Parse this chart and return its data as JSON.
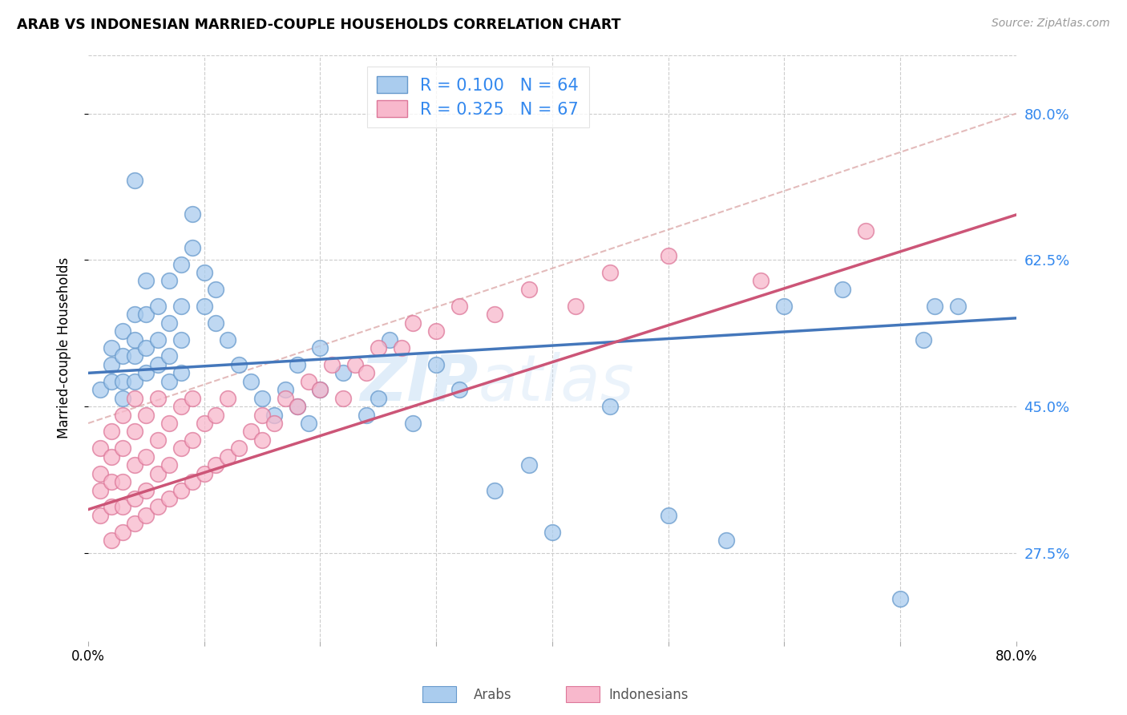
{
  "title": "ARAB VS INDONESIAN MARRIED-COUPLE HOUSEHOLDS CORRELATION CHART",
  "source": "Source: ZipAtlas.com",
  "ylabel": "Married-couple Households",
  "ytick_vals": [
    0.8,
    0.625,
    0.45,
    0.275
  ],
  "ytick_labels": [
    "80.0%",
    "62.5%",
    "45.0%",
    "27.5%"
  ],
  "xlim": [
    0.0,
    0.8
  ],
  "ylim": [
    0.17,
    0.87
  ],
  "arab_color": "#aaccee",
  "arab_edge_color": "#6699cc",
  "indonesian_color": "#f8b8cc",
  "indonesian_edge_color": "#dd7799",
  "arab_R": 0.1,
  "arab_N": 64,
  "indonesian_R": 0.325,
  "indonesian_N": 67,
  "trend_arab_color": "#4477bb",
  "trend_indonesian_color": "#cc5577",
  "diagonal_color": "#ddaaaa",
  "diagonal_style": "--",
  "watermark": "ZIPatlas",
  "legend_label_arab": "Arabs",
  "legend_label_indonesian": "Indonesians",
  "arab_x": [
    0.01,
    0.02,
    0.02,
    0.02,
    0.03,
    0.03,
    0.03,
    0.03,
    0.04,
    0.04,
    0.04,
    0.04,
    0.04,
    0.05,
    0.05,
    0.05,
    0.05,
    0.06,
    0.06,
    0.06,
    0.07,
    0.07,
    0.07,
    0.07,
    0.08,
    0.08,
    0.08,
    0.08,
    0.09,
    0.09,
    0.1,
    0.1,
    0.11,
    0.11,
    0.12,
    0.13,
    0.14,
    0.15,
    0.16,
    0.17,
    0.18,
    0.18,
    0.19,
    0.2,
    0.2,
    0.22,
    0.24,
    0.25,
    0.26,
    0.28,
    0.3,
    0.32,
    0.35,
    0.38,
    0.4,
    0.45,
    0.5,
    0.55,
    0.6,
    0.65,
    0.7,
    0.72,
    0.73,
    0.75
  ],
  "arab_y": [
    0.47,
    0.48,
    0.5,
    0.52,
    0.46,
    0.48,
    0.51,
    0.54,
    0.48,
    0.51,
    0.53,
    0.56,
    0.72,
    0.49,
    0.52,
    0.56,
    0.6,
    0.5,
    0.53,
    0.57,
    0.48,
    0.51,
    0.55,
    0.6,
    0.49,
    0.53,
    0.57,
    0.62,
    0.64,
    0.68,
    0.57,
    0.61,
    0.55,
    0.59,
    0.53,
    0.5,
    0.48,
    0.46,
    0.44,
    0.47,
    0.45,
    0.5,
    0.43,
    0.47,
    0.52,
    0.49,
    0.44,
    0.46,
    0.53,
    0.43,
    0.5,
    0.47,
    0.35,
    0.38,
    0.3,
    0.45,
    0.32,
    0.29,
    0.57,
    0.59,
    0.22,
    0.53,
    0.57,
    0.57
  ],
  "indonesian_x": [
    0.01,
    0.01,
    0.01,
    0.01,
    0.02,
    0.02,
    0.02,
    0.02,
    0.02,
    0.03,
    0.03,
    0.03,
    0.03,
    0.03,
    0.04,
    0.04,
    0.04,
    0.04,
    0.04,
    0.05,
    0.05,
    0.05,
    0.05,
    0.06,
    0.06,
    0.06,
    0.06,
    0.07,
    0.07,
    0.07,
    0.08,
    0.08,
    0.08,
    0.09,
    0.09,
    0.09,
    0.1,
    0.1,
    0.11,
    0.11,
    0.12,
    0.12,
    0.13,
    0.14,
    0.15,
    0.15,
    0.16,
    0.17,
    0.18,
    0.19,
    0.2,
    0.21,
    0.22,
    0.23,
    0.24,
    0.25,
    0.27,
    0.28,
    0.3,
    0.32,
    0.35,
    0.38,
    0.42,
    0.45,
    0.5,
    0.58,
    0.67
  ],
  "indonesian_y": [
    0.32,
    0.35,
    0.37,
    0.4,
    0.29,
    0.33,
    0.36,
    0.39,
    0.42,
    0.3,
    0.33,
    0.36,
    0.4,
    0.44,
    0.31,
    0.34,
    0.38,
    0.42,
    0.46,
    0.32,
    0.35,
    0.39,
    0.44,
    0.33,
    0.37,
    0.41,
    0.46,
    0.34,
    0.38,
    0.43,
    0.35,
    0.4,
    0.45,
    0.36,
    0.41,
    0.46,
    0.37,
    0.43,
    0.38,
    0.44,
    0.39,
    0.46,
    0.4,
    0.42,
    0.41,
    0.44,
    0.43,
    0.46,
    0.45,
    0.48,
    0.47,
    0.5,
    0.46,
    0.5,
    0.49,
    0.52,
    0.52,
    0.55,
    0.54,
    0.57,
    0.56,
    0.59,
    0.57,
    0.61,
    0.63,
    0.6,
    0.66
  ]
}
